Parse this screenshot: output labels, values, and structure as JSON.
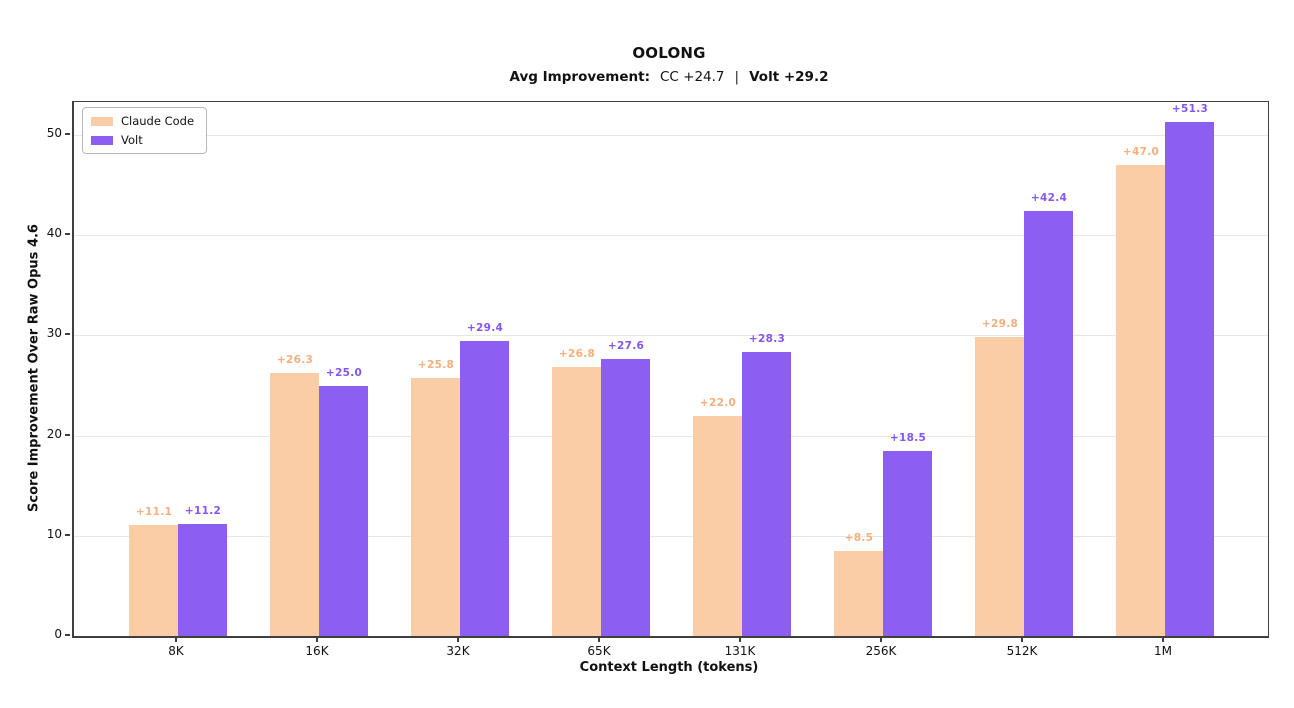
{
  "title": "OOLONG",
  "subtitle": {
    "prefix": "Avg Improvement:",
    "cc_value": "CC +24.7",
    "separator": "|",
    "volt_value": "Volt +29.2"
  },
  "chart_data": {
    "type": "bar",
    "categories": [
      "8K",
      "16K",
      "32K",
      "65K",
      "131K",
      "256K",
      "512K",
      "1M"
    ],
    "series": [
      {
        "name": "Claude Code",
        "color": "#FBCDA7",
        "label_color": "#F5AE7E",
        "values": [
          11.1,
          26.3,
          25.8,
          26.8,
          22.0,
          8.5,
          29.8,
          47.0
        ]
      },
      {
        "name": "Volt",
        "color": "#8C5EF2",
        "label_color": "#8456F0",
        "values": [
          11.2,
          25.0,
          29.4,
          27.6,
          28.3,
          18.5,
          42.4,
          51.3
        ]
      }
    ],
    "value_label_prefix": "+",
    "xlabel": "Context Length (tokens)",
    "ylabel": "Score Improvement Over Raw Opus 4.6",
    "ylim": [
      0,
      53.3
    ],
    "yticks": [
      0,
      10,
      20,
      30,
      40,
      50
    ],
    "grid": "horizontal",
    "gridline_color": "#e7e7e7",
    "legend_position": "upper-left",
    "background_color": "#ffffff"
  }
}
